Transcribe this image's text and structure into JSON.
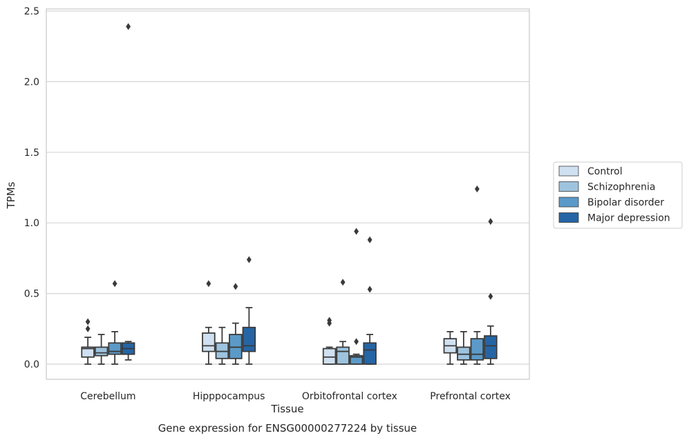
{
  "chart_data": {
    "type": "boxplot",
    "title": "",
    "caption": "Gene expression for ENSG00000277224 by tissue",
    "xlabel": "Tissue",
    "ylabel": "TPMs",
    "ylim": [
      -0.12,
      2.52
    ],
    "yticks": [
      0.0,
      0.5,
      1.0,
      1.5,
      2.0,
      2.5
    ],
    "ytick_labels": [
      "0.0",
      "0.5",
      "1.0",
      "1.5",
      "2.0",
      "2.5"
    ],
    "grid": "horizontal",
    "legend_position": "right",
    "categories": [
      "Cerebellum",
      "Hipppocampus",
      "Orbitofrontal cortex",
      "Prefrontal cortex"
    ],
    "series": [
      {
        "name": "Control",
        "color": "#cfe0f0",
        "boxes": [
          {
            "whislo": 0.0,
            "q1": 0.05,
            "med": 0.11,
            "q3": 0.12,
            "whishi": 0.19,
            "fliers": [
              0.25,
              0.3
            ]
          },
          {
            "whislo": 0.0,
            "q1": 0.09,
            "med": 0.13,
            "q3": 0.22,
            "whishi": 0.26,
            "fliers": [
              0.57
            ]
          },
          {
            "whislo": 0.0,
            "q1": 0.0,
            "med": 0.05,
            "q3": 0.11,
            "whishi": 0.12,
            "fliers": [
              0.29,
              0.31
            ]
          },
          {
            "whislo": 0.0,
            "q1": 0.08,
            "med": 0.13,
            "q3": 0.18,
            "whishi": 0.23,
            "fliers": []
          }
        ]
      },
      {
        "name": "Schizophrenia",
        "color": "#9dc3de",
        "boxes": [
          {
            "whislo": 0.0,
            "q1": 0.06,
            "med": 0.08,
            "q3": 0.12,
            "whishi": 0.21,
            "fliers": []
          },
          {
            "whislo": 0.0,
            "q1": 0.04,
            "med": 0.09,
            "q3": 0.15,
            "whishi": 0.26,
            "fliers": []
          },
          {
            "whislo": 0.0,
            "q1": 0.0,
            "med": 0.09,
            "q3": 0.12,
            "whishi": 0.16,
            "fliers": [
              0.58
            ]
          },
          {
            "whislo": 0.0,
            "q1": 0.03,
            "med": 0.07,
            "q3": 0.12,
            "whishi": 0.23,
            "fliers": []
          }
        ]
      },
      {
        "name": "Bipolar disorder",
        "color": "#5b9ac8",
        "boxes": [
          {
            "whislo": 0.0,
            "q1": 0.07,
            "med": 0.09,
            "q3": 0.15,
            "whishi": 0.23,
            "fliers": [
              0.57
            ]
          },
          {
            "whislo": 0.0,
            "q1": 0.04,
            "med": 0.12,
            "q3": 0.21,
            "whishi": 0.29,
            "fliers": [
              0.55
            ]
          },
          {
            "whislo": 0.0,
            "q1": 0.0,
            "med": 0.05,
            "q3": 0.06,
            "whishi": 0.07,
            "fliers": [
              0.16,
              0.94
            ]
          },
          {
            "whislo": 0.0,
            "q1": 0.03,
            "med": 0.07,
            "q3": 0.18,
            "whishi": 0.23,
            "fliers": [
              1.24
            ]
          }
        ]
      },
      {
        "name": "Major depression",
        "color": "#2565a5",
        "boxes": [
          {
            "whislo": 0.03,
            "q1": 0.07,
            "med": 0.11,
            "q3": 0.15,
            "whishi": 0.16,
            "fliers": [
              2.39
            ]
          },
          {
            "whislo": 0.0,
            "q1": 0.09,
            "med": 0.13,
            "q3": 0.26,
            "whishi": 0.4,
            "fliers": [
              0.74
            ]
          },
          {
            "whislo": 0.0,
            "q1": 0.0,
            "med": 0.1,
            "q3": 0.15,
            "whishi": 0.21,
            "fliers": [
              0.53,
              0.88
            ]
          },
          {
            "whislo": 0.0,
            "q1": 0.04,
            "med": 0.13,
            "q3": 0.2,
            "whishi": 0.27,
            "fliers": [
              0.48,
              1.01
            ]
          }
        ]
      }
    ],
    "colors": {
      "grid": "#d5d5d5",
      "frame": "#cccccc",
      "line": "#3a3a3a"
    }
  }
}
